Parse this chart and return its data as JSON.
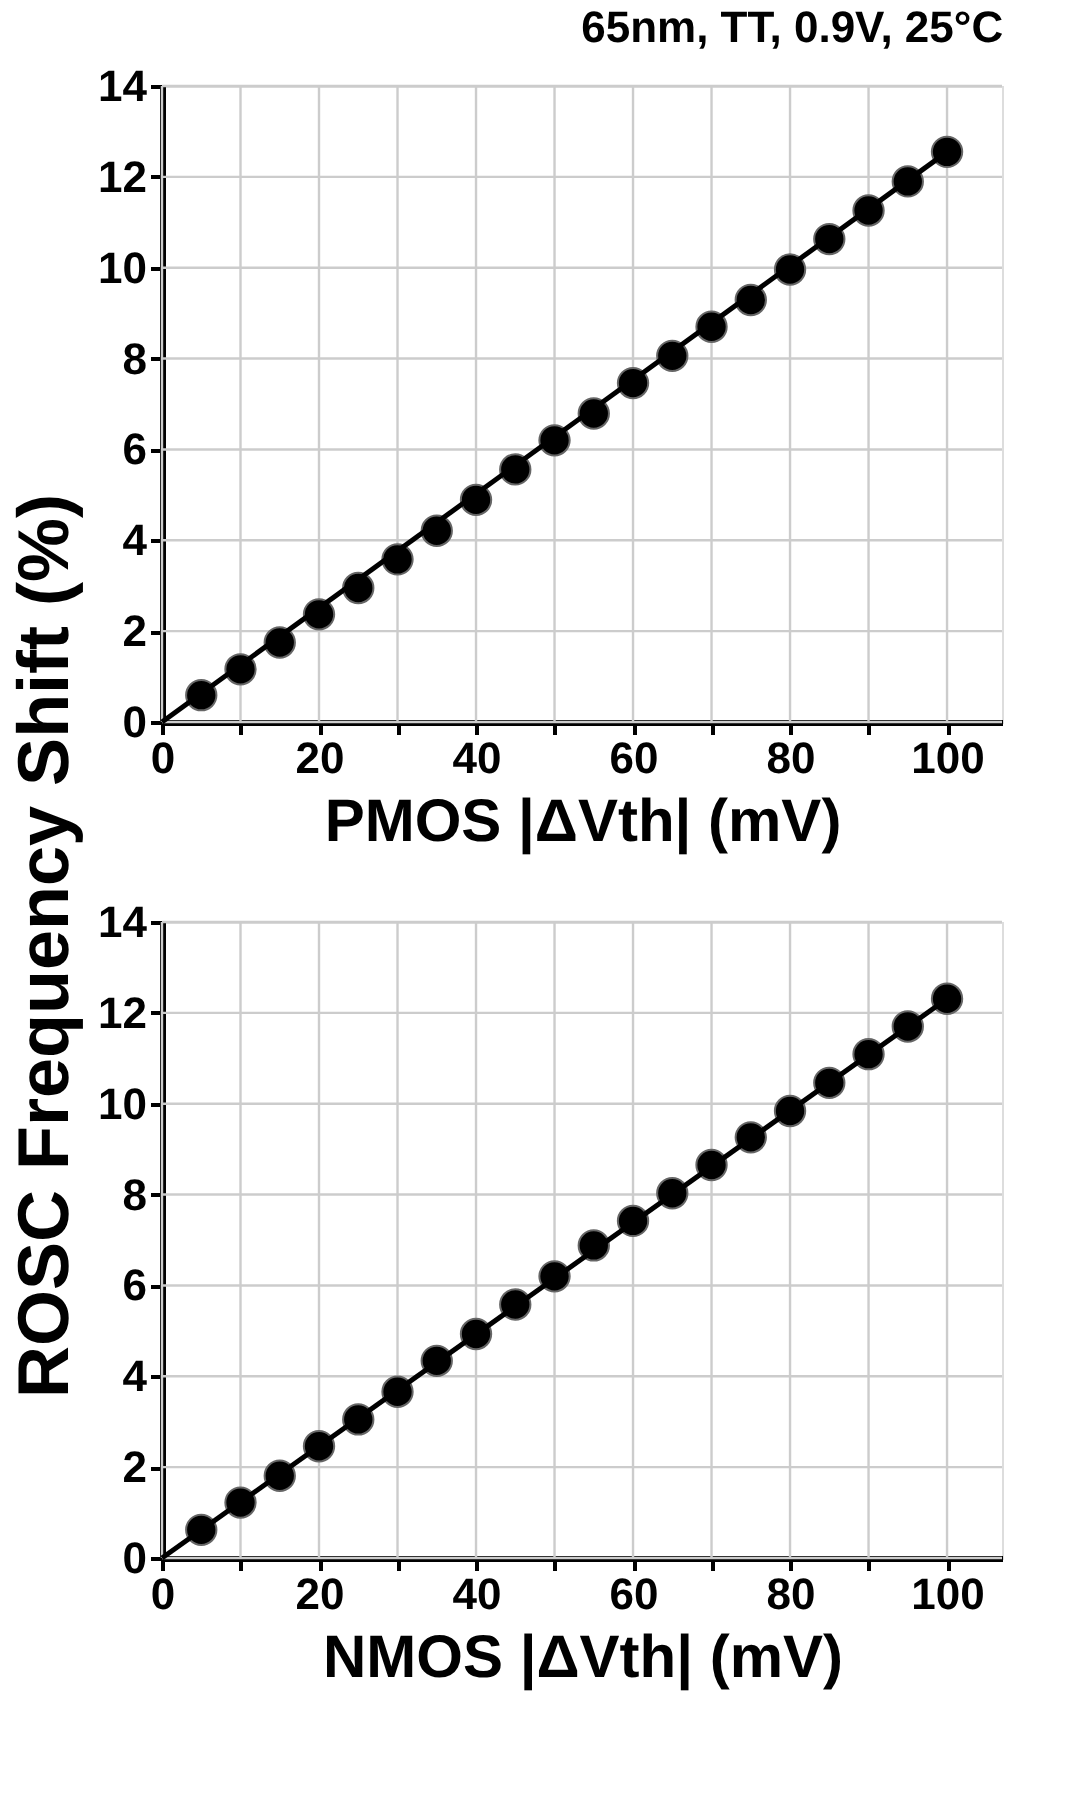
{
  "chart_data": [
    {
      "type": "scatter",
      "title": "65nm, TT, 0.9V, 25°C",
      "xlabel": "PMOS |ΔVth| (mV)",
      "ylabel": "ROSC Frequency Shift (%)",
      "marker": "circle",
      "grid": true,
      "xlim": [
        0,
        107
      ],
      "ylim": [
        0,
        14
      ],
      "xticks": [
        0,
        {
          "value": 10,
          "label": null
        },
        20,
        {
          "value": 30,
          "label": null
        },
        40,
        {
          "value": 50,
          "label": null
        },
        60,
        {
          "value": 70,
          "label": null
        },
        80,
        {
          "value": 90,
          "label": null
        },
        100
      ],
      "yticks": [
        0,
        2,
        4,
        6,
        8,
        10,
        12,
        14
      ],
      "series": [
        {
          "color": "#000000",
          "x": [
            5,
            10,
            15,
            20,
            25,
            30,
            35,
            40,
            45,
            50,
            55,
            60,
            65,
            70,
            75,
            80,
            85,
            90,
            95,
            100
          ],
          "values": [
            0.59,
            1.16,
            1.75,
            2.37,
            2.95,
            3.58,
            4.21,
            4.89,
            5.56,
            6.2,
            6.79,
            7.46,
            8.06,
            8.7,
            9.29,
            9.96,
            10.63,
            11.26,
            11.9,
            12.55
          ]
        },
        {
          "type": "line",
          "color": "#000000",
          "line_style": "solid",
          "marker": "none",
          "x": [
            0,
            100
          ],
          "values": [
            0,
            12.55
          ]
        }
      ]
    },
    {
      "type": "scatter",
      "xlabel": "NMOS |ΔVth| (mV)",
      "marker": "circle",
      "grid": true,
      "xlim": [
        0,
        107
      ],
      "ylim": [
        0,
        14
      ],
      "xticks": [
        0,
        {
          "value": 10,
          "label": null
        },
        20,
        {
          "value": 30,
          "label": null
        },
        40,
        {
          "value": 50,
          "label": null
        },
        60,
        {
          "value": 70,
          "label": null
        },
        80,
        {
          "value": 90,
          "label": null
        },
        100
      ],
      "yticks": [
        0,
        2,
        4,
        6,
        8,
        10,
        12,
        14
      ],
      "series": [
        {
          "color": "#000000",
          "x": [
            5,
            10,
            15,
            20,
            25,
            30,
            35,
            40,
            45,
            50,
            55,
            60,
            65,
            70,
            75,
            80,
            85,
            90,
            95,
            100
          ],
          "values": [
            0.62,
            1.22,
            1.81,
            2.46,
            3.05,
            3.66,
            4.34,
            4.93,
            5.58,
            6.2,
            6.88,
            7.42,
            8.03,
            8.65,
            9.26,
            9.84,
            10.46,
            11.09,
            11.7,
            12.31
          ]
        },
        {
          "type": "line",
          "color": "#000000",
          "line_style": "solid",
          "marker": "none",
          "x": [
            0,
            100
          ],
          "values": [
            0,
            12.31
          ]
        }
      ]
    }
  ]
}
